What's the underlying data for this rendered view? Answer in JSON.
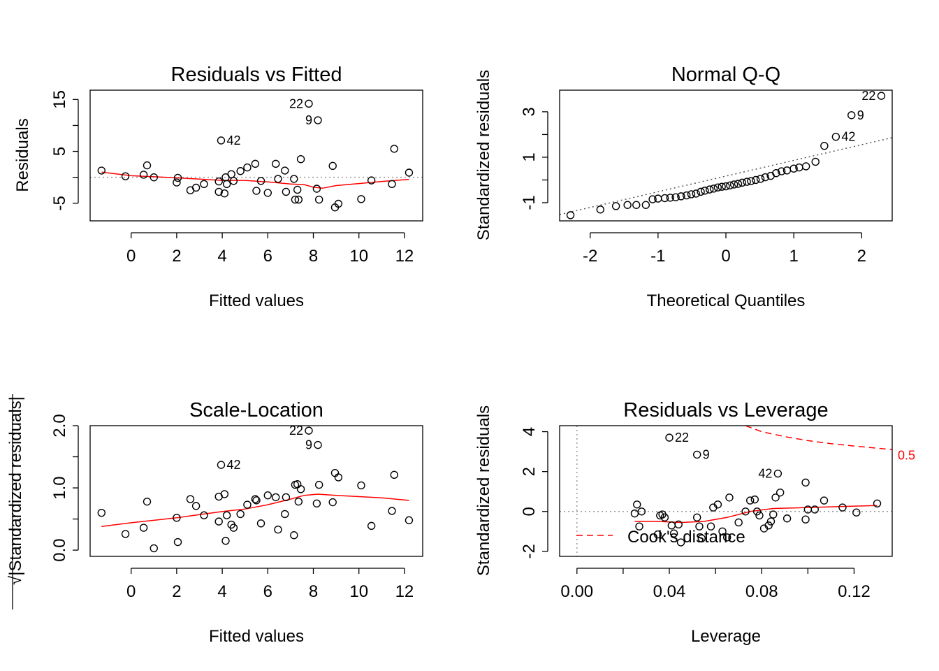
{
  "chart_data": [
    {
      "id": "rvf",
      "type": "scatter",
      "title": "Residuals vs Fitted",
      "xlabel": "Fitted values",
      "ylabel": "Residuals",
      "xlim": [
        -1.8,
        12.8
      ],
      "ylim": [
        -8.4,
        16.8
      ],
      "xticks": [
        0,
        2,
        4,
        6,
        8,
        10,
        12
      ],
      "xtick_labels": [
        "0",
        "2",
        "4",
        "6",
        "8",
        "10",
        "12"
      ],
      "yticks": [
        -5,
        0,
        5,
        10,
        15
      ],
      "ytick_labels": [
        "-5",
        "",
        "5",
        "",
        "15"
      ],
      "ytick_rotated": true,
      "reference_line": {
        "type": "horizontal",
        "value": 0,
        "style": "dotted-gray"
      },
      "points": [
        [
          -1.3,
          1.3
        ],
        [
          -0.25,
          0.2
        ],
        [
          0.55,
          0.5
        ],
        [
          0.7,
          2.3
        ],
        [
          1.0,
          0.0
        ],
        [
          2.0,
          -1.0
        ],
        [
          2.05,
          -0.1
        ],
        [
          2.6,
          -2.5
        ],
        [
          2.85,
          -2.0
        ],
        [
          3.2,
          -1.3
        ],
        [
          3.85,
          -0.8
        ],
        [
          3.85,
          -2.8
        ],
        [
          3.95,
          7.1
        ],
        [
          4.1,
          -3.1
        ],
        [
          4.15,
          0.0
        ],
        [
          4.2,
          -1.3
        ],
        [
          4.4,
          0.6
        ],
        [
          4.5,
          -0.7
        ],
        [
          4.8,
          1.2
        ],
        [
          5.1,
          1.9
        ],
        [
          5.45,
          2.6
        ],
        [
          5.5,
          -2.6
        ],
        [
          5.7,
          -0.7
        ],
        [
          6.0,
          -3.0
        ],
        [
          6.35,
          2.6
        ],
        [
          6.45,
          -0.3
        ],
        [
          6.75,
          1.3
        ],
        [
          6.8,
          -2.8
        ],
        [
          7.15,
          -0.3
        ],
        [
          7.2,
          -4.3
        ],
        [
          7.3,
          -2.4
        ],
        [
          7.35,
          -4.3
        ],
        [
          7.45,
          3.5
        ],
        [
          7.8,
          14.2
        ],
        [
          8.2,
          11.0
        ],
        [
          8.15,
          -2.2
        ],
        [
          8.25,
          -4.3
        ],
        [
          8.85,
          2.2
        ],
        [
          8.95,
          -5.8
        ],
        [
          9.1,
          -5.1
        ],
        [
          10.1,
          -4.2
        ],
        [
          10.55,
          -0.6
        ],
        [
          11.45,
          -1.3
        ],
        [
          11.55,
          5.5
        ],
        [
          12.2,
          0.9
        ]
      ],
      "smooth": [
        [
          -1.3,
          1.0
        ],
        [
          0,
          0.3
        ],
        [
          1,
          0.1
        ],
        [
          2,
          -0.1
        ],
        [
          3,
          -0.35
        ],
        [
          4,
          -0.6
        ],
        [
          5,
          -0.6
        ],
        [
          6,
          -0.9
        ],
        [
          7,
          -1.3
        ],
        [
          7.6,
          -1.4
        ],
        [
          8.0,
          -1.9
        ],
        [
          8.4,
          -2.1
        ],
        [
          9,
          -1.6
        ],
        [
          10,
          -1.2
        ],
        [
          11,
          -0.8
        ],
        [
          12.2,
          -0.4
        ]
      ],
      "labels": [
        {
          "text": "22",
          "x": 7.8,
          "y": 14.2,
          "side": "left"
        },
        {
          "text": "9",
          "x": 8.2,
          "y": 11.0,
          "side": "left"
        },
        {
          "text": "42",
          "x": 3.95,
          "y": 7.1,
          "side": "right"
        }
      ]
    },
    {
      "id": "qq",
      "type": "scatter",
      "title": "Normal Q-Q",
      "xlabel": "Theoretical Quantiles",
      "ylabel": "Standardized residuals",
      "xlim": [
        -2.45,
        2.45
      ],
      "ylim": [
        -1.8,
        3.95
      ],
      "xticks": [
        -2,
        -1,
        0,
        1,
        2
      ],
      "xtick_labels": [
        "-2",
        "-1",
        "0",
        "1",
        "2"
      ],
      "yticks": [
        -1,
        0,
        1,
        2,
        3
      ],
      "ytick_labels": [
        "-1",
        "",
        "1",
        "",
        "3"
      ],
      "ytick_rotated": true,
      "reference_line": {
        "type": "line",
        "intercept": 0.17,
        "slope": 0.69,
        "style": "dotted-dark"
      },
      "points": [
        [
          -2.29,
          -1.55
        ],
        [
          -1.85,
          -1.3
        ],
        [
          -1.62,
          -1.15
        ],
        [
          -1.45,
          -1.1
        ],
        [
          -1.32,
          -1.1
        ],
        [
          -1.18,
          -1.1
        ],
        [
          -1.08,
          -0.85
        ],
        [
          -1.0,
          -0.82
        ],
        [
          -0.9,
          -0.8
        ],
        [
          -0.82,
          -0.78
        ],
        [
          -0.74,
          -0.76
        ],
        [
          -0.66,
          -0.72
        ],
        [
          -0.58,
          -0.68
        ],
        [
          -0.51,
          -0.63
        ],
        [
          -0.44,
          -0.6
        ],
        [
          -0.37,
          -0.52
        ],
        [
          -0.31,
          -0.47
        ],
        [
          -0.24,
          -0.42
        ],
        [
          -0.18,
          -0.38
        ],
        [
          -0.12,
          -0.33
        ],
        [
          -0.06,
          -0.3
        ],
        [
          0.0,
          -0.28
        ],
        [
          0.06,
          -0.24
        ],
        [
          0.12,
          -0.2
        ],
        [
          0.18,
          -0.17
        ],
        [
          0.24,
          -0.12
        ],
        [
          0.31,
          -0.08
        ],
        [
          0.37,
          -0.05
        ],
        [
          0.44,
          0.0
        ],
        [
          0.51,
          0.05
        ],
        [
          0.58,
          0.12
        ],
        [
          0.66,
          0.18
        ],
        [
          0.74,
          0.3
        ],
        [
          0.82,
          0.38
        ],
        [
          0.9,
          0.42
        ],
        [
          1.0,
          0.5
        ],
        [
          1.08,
          0.55
        ],
        [
          1.18,
          0.6
        ],
        [
          1.32,
          0.8
        ],
        [
          1.45,
          1.5
        ],
        [
          1.62,
          1.9
        ],
        [
          1.85,
          2.85
        ],
        [
          2.29,
          3.7
        ]
      ],
      "labels": [
        {
          "text": "22",
          "x": 2.29,
          "y": 3.7,
          "side": "left"
        },
        {
          "text": "9",
          "x": 1.85,
          "y": 2.85,
          "side": "right"
        },
        {
          "text": "42",
          "x": 1.62,
          "y": 1.9,
          "side": "right"
        }
      ]
    },
    {
      "id": "sl",
      "type": "scatter",
      "title": "Scale-Location",
      "xlabel": "Fitted values",
      "ylabel": "Standardized residuals",
      "ylabel_prefix": "√",
      "ylabel_abs": true,
      "xlim": [
        -1.8,
        12.8
      ],
      "ylim": [
        -0.1,
        2.0
      ],
      "xticks": [
        0,
        2,
        4,
        6,
        8,
        10,
        12
      ],
      "xtick_labels": [
        "0",
        "2",
        "4",
        "6",
        "8",
        "10",
        "12"
      ],
      "yticks": [
        0.0,
        0.5,
        1.0,
        1.5,
        2.0
      ],
      "ytick_labels": [
        "0.0",
        "",
        "1.0",
        "",
        "2.0"
      ],
      "ytick_rotated": true,
      "points": [
        [
          -1.3,
          0.6
        ],
        [
          -0.25,
          0.26
        ],
        [
          0.55,
          0.36
        ],
        [
          0.7,
          0.78
        ],
        [
          1.0,
          0.03
        ],
        [
          2.0,
          0.52
        ],
        [
          2.05,
          0.13
        ],
        [
          2.6,
          0.82
        ],
        [
          2.85,
          0.71
        ],
        [
          3.2,
          0.56
        ],
        [
          3.85,
          0.46
        ],
        [
          3.85,
          0.86
        ],
        [
          3.95,
          1.37
        ],
        [
          4.1,
          0.9
        ],
        [
          4.15,
          0.15
        ],
        [
          4.2,
          0.56
        ],
        [
          4.4,
          0.41
        ],
        [
          4.5,
          0.36
        ],
        [
          4.8,
          0.58
        ],
        [
          5.1,
          0.73
        ],
        [
          5.45,
          0.82
        ],
        [
          5.5,
          0.8
        ],
        [
          5.7,
          0.43
        ],
        [
          6.0,
          0.88
        ],
        [
          6.35,
          0.85
        ],
        [
          6.45,
          0.33
        ],
        [
          6.75,
          0.58
        ],
        [
          6.8,
          0.85
        ],
        [
          7.15,
          0.24
        ],
        [
          7.2,
          1.05
        ],
        [
          7.3,
          1.06
        ],
        [
          7.35,
          0.78
        ],
        [
          7.45,
          0.98
        ],
        [
          7.8,
          1.92
        ],
        [
          8.2,
          1.69
        ],
        [
          8.15,
          0.75
        ],
        [
          8.25,
          1.05
        ],
        [
          8.85,
          0.77
        ],
        [
          8.95,
          1.24
        ],
        [
          9.1,
          1.17
        ],
        [
          10.1,
          1.04
        ],
        [
          10.55,
          0.39
        ],
        [
          11.45,
          0.63
        ],
        [
          11.55,
          1.21
        ],
        [
          12.2,
          0.48
        ]
      ],
      "smooth": [
        [
          -1.3,
          0.38
        ],
        [
          0,
          0.44
        ],
        [
          1,
          0.48
        ],
        [
          2,
          0.52
        ],
        [
          3,
          0.57
        ],
        [
          4,
          0.62
        ],
        [
          5,
          0.66
        ],
        [
          6,
          0.73
        ],
        [
          7,
          0.82
        ],
        [
          7.6,
          0.88
        ],
        [
          8.2,
          0.9
        ],
        [
          9,
          0.88
        ],
        [
          10,
          0.86
        ],
        [
          11,
          0.84
        ],
        [
          12.2,
          0.8
        ]
      ],
      "labels": [
        {
          "text": "22",
          "x": 7.8,
          "y": 1.92,
          "side": "left"
        },
        {
          "text": "9",
          "x": 8.2,
          "y": 1.69,
          "side": "left"
        },
        {
          "text": "42",
          "x": 3.95,
          "y": 1.37,
          "side": "right"
        }
      ]
    },
    {
      "id": "rvl",
      "type": "scatter",
      "title": "Residuals vs Leverage",
      "xlabel": "Leverage",
      "ylabel": "Standardized residuals",
      "xlim": [
        -0.0075,
        0.1365
      ],
      "ylim": [
        -2.25,
        4.3
      ],
      "xticks": [
        0.0,
        0.02,
        0.04,
        0.06,
        0.08,
        0.1,
        0.12
      ],
      "xtick_labels": [
        "0.00",
        "",
        "0.04",
        "",
        "0.08",
        "",
        "0.12"
      ],
      "yticks": [
        -2,
        0,
        2,
        4
      ],
      "ytick_labels": [
        "-2",
        "0",
        "2",
        "4"
      ],
      "ytick_rotated": true,
      "reference_line": {
        "type": "horizontal",
        "value": 0,
        "style": "dotted-gray"
      },
      "reference_vline": {
        "value": 0,
        "style": "dotted-gray"
      },
      "cook_contour": {
        "level": "0.5",
        "points": [
          [
            0.073,
            4.3
          ],
          [
            0.08,
            4.0
          ],
          [
            0.09,
            3.75
          ],
          [
            0.1,
            3.55
          ],
          [
            0.11,
            3.4
          ],
          [
            0.12,
            3.28
          ],
          [
            0.1365,
            3.1
          ]
        ]
      },
      "legend": {
        "text": "Cook's distance",
        "position": "bottom-left"
      },
      "points": [
        [
          0.025,
          -0.1
        ],
        [
          0.026,
          0.35
        ],
        [
          0.027,
          -0.75
        ],
        [
          0.028,
          0.0
        ],
        [
          0.035,
          -1.15
        ],
        [
          0.036,
          -0.2
        ],
        [
          0.037,
          -0.15
        ],
        [
          0.038,
          -0.3
        ],
        [
          0.04,
          3.7
        ],
        [
          0.041,
          -0.7
        ],
        [
          0.042,
          -1.1
        ],
        [
          0.044,
          -0.65
        ],
        [
          0.045,
          -1.55
        ],
        [
          0.052,
          2.85
        ],
        [
          0.052,
          -0.3
        ],
        [
          0.053,
          -0.75
        ],
        [
          0.054,
          -1.35
        ],
        [
          0.058,
          -0.75
        ],
        [
          0.059,
          0.2
        ],
        [
          0.061,
          0.35
        ],
        [
          0.063,
          -1.0
        ],
        [
          0.065,
          -1.3
        ],
        [
          0.066,
          0.7
        ],
        [
          0.07,
          -0.55
        ],
        [
          0.073,
          0.0
        ],
        [
          0.075,
          0.55
        ],
        [
          0.077,
          0.6
        ],
        [
          0.078,
          0.0
        ],
        [
          0.079,
          -0.2
        ],
        [
          0.081,
          -0.85
        ],
        [
          0.083,
          -0.7
        ],
        [
          0.084,
          -0.5
        ],
        [
          0.085,
          -0.15
        ],
        [
          0.086,
          0.7
        ],
        [
          0.087,
          1.9
        ],
        [
          0.088,
          0.95
        ],
        [
          0.091,
          -0.35
        ],
        [
          0.099,
          1.45
        ],
        [
          0.099,
          -0.4
        ],
        [
          0.1,
          0.1
        ],
        [
          0.103,
          0.1
        ],
        [
          0.107,
          0.55
        ],
        [
          0.115,
          0.2
        ],
        [
          0.121,
          -0.05
        ],
        [
          0.13,
          0.4
        ]
      ],
      "smooth": [
        [
          0.025,
          -0.5
        ],
        [
          0.035,
          -0.5
        ],
        [
          0.045,
          -0.55
        ],
        [
          0.055,
          -0.5
        ],
        [
          0.065,
          -0.3
        ],
        [
          0.075,
          0.0
        ],
        [
          0.085,
          0.15
        ],
        [
          0.1,
          0.2
        ],
        [
          0.115,
          0.25
        ],
        [
          0.13,
          0.3
        ]
      ],
      "labels": [
        {
          "text": "22",
          "x": 0.04,
          "y": 3.7,
          "side": "right"
        },
        {
          "text": "9",
          "x": 0.052,
          "y": 2.85,
          "side": "right"
        },
        {
          "text": "42",
          "x": 0.087,
          "y": 1.9,
          "side": "left"
        }
      ]
    }
  ]
}
